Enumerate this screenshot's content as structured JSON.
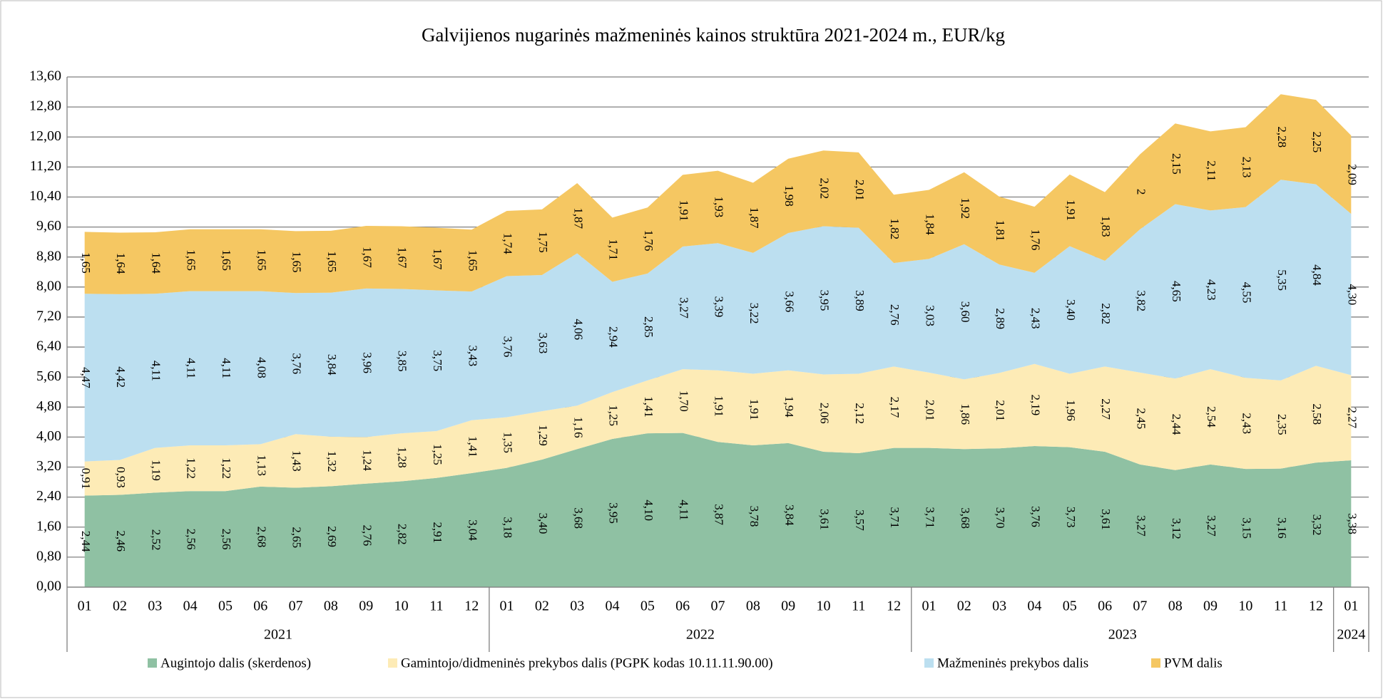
{
  "chart_data": {
    "type": "stacked-area",
    "title": "Galvijienos nugarinės mažmeninės kainos struktūra 2021-2024 m., EUR/kg",
    "categories": [
      "01",
      "02",
      "03",
      "04",
      "05",
      "06",
      "07",
      "08",
      "09",
      "10",
      "11",
      "12",
      "01",
      "02",
      "03",
      "04",
      "05",
      "06",
      "07",
      "08",
      "09",
      "10",
      "11",
      "12",
      "01",
      "02",
      "03",
      "04",
      "05",
      "06",
      "07",
      "08",
      "09",
      "10",
      "11",
      "12",
      "01"
    ],
    "years": [
      "2021",
      "2022",
      "2023",
      "2024"
    ],
    "ylim": [
      0,
      13.6
    ],
    "yticks": [
      {
        "value": 0,
        "label": "0,00"
      },
      {
        "value": 0.8,
        "label": "0,80"
      },
      {
        "value": 1.6,
        "label": "1,60"
      },
      {
        "value": 2.4,
        "label": "2,40"
      },
      {
        "value": 3.2,
        "label": "3,20"
      },
      {
        "value": 4,
        "label": "4,00"
      },
      {
        "value": 4.8,
        "label": "4,80"
      },
      {
        "value": 5.6,
        "label": "5,60"
      },
      {
        "value": 6.4,
        "label": "6,40"
      },
      {
        "value": 7.2,
        "label": "7,20"
      },
      {
        "value": 8,
        "label": "8,00"
      },
      {
        "value": 8.8,
        "label": "8,80"
      },
      {
        "value": 9.6,
        "label": "9,60"
      },
      {
        "value": 10.4,
        "label": "10,40"
      },
      {
        "value": 11.2,
        "label": "11,20"
      },
      {
        "value": 12,
        "label": "12,00"
      },
      {
        "value": 12.8,
        "label": "12,80"
      },
      {
        "value": 13.6,
        "label": "13,60"
      }
    ],
    "grid": true,
    "legend": "bottom",
    "series": [
      {
        "name": "Augintojo dalis (skerdenos)",
        "color": "#8fc1a3",
        "values": [
          2.44,
          2.46,
          2.52,
          2.56,
          2.56,
          2.68,
          2.65,
          2.69,
          2.76,
          2.82,
          2.91,
          3.04,
          3.18,
          3.4,
          3.68,
          3.95,
          4.1,
          4.11,
          3.87,
          3.78,
          3.84,
          3.61,
          3.57,
          3.71,
          3.71,
          3.68,
          3.7,
          3.76,
          3.73,
          3.61,
          3.27,
          3.12,
          3.27,
          3.15,
          3.16,
          3.32,
          3.38
        ],
        "value_labels": [
          "2,44",
          "2,46",
          "2,52",
          "2,56",
          "2,56",
          "2,68",
          "2,65",
          "2,69",
          "2,76",
          "2,82",
          "2,91",
          "3,04",
          "3,18",
          "3,40",
          "3,68",
          "3,95",
          "4,10",
          "4,11",
          "3,87",
          "3,78",
          "3,84",
          "3,61",
          "3,57",
          "3,71",
          "3,71",
          "3,68",
          "3,70",
          "3,76",
          "3,73",
          "3,61",
          "3,27",
          "3,12",
          "3,27",
          "3,15",
          "3,16",
          "3,32",
          "3,38"
        ]
      },
      {
        "name": "Gamintojo/didmeninės prekybos dalis (PGPK kodas 10.11.11.90.00)",
        "color": "#fdebb6",
        "values": [
          0.91,
          0.93,
          1.19,
          1.22,
          1.22,
          1.13,
          1.43,
          1.32,
          1.24,
          1.28,
          1.25,
          1.41,
          1.35,
          1.29,
          1.16,
          1.25,
          1.41,
          1.7,
          1.91,
          1.91,
          1.94,
          2.06,
          2.12,
          2.17,
          2.01,
          1.86,
          2.01,
          2.19,
          1.96,
          2.27,
          2.45,
          2.44,
          2.54,
          2.43,
          2.35,
          2.58,
          2.27
        ],
        "value_labels": [
          "0,91",
          "0,93",
          "1,19",
          "1,22",
          "1,22",
          "1,13",
          "1,43",
          "1,32",
          "1,24",
          "1,28",
          "1,25",
          "1,41",
          "1,35",
          "1,29",
          "1,16",
          "1,25",
          "1,41",
          "1,70",
          "1,91",
          "1,91",
          "1,94",
          "2,06",
          "2,12",
          "2,17",
          "2,01",
          "1,86",
          "2,01",
          "2,19",
          "1,96",
          "2,27",
          "2,45",
          "2,44",
          "2,54",
          "2,43",
          "2,35",
          "2,58",
          "2,27"
        ]
      },
      {
        "name": "Mažmeninės prekybos dalis",
        "color": "#bcdff0",
        "values": [
          4.47,
          4.42,
          4.11,
          4.11,
          4.11,
          4.08,
          3.76,
          3.84,
          3.96,
          3.85,
          3.75,
          3.43,
          3.76,
          3.63,
          4.06,
          2.94,
          2.85,
          3.27,
          3.39,
          3.22,
          3.66,
          3.95,
          3.89,
          2.76,
          3.03,
          3.6,
          2.89,
          2.43,
          3.4,
          2.82,
          3.82,
          4.65,
          4.23,
          4.55,
          5.35,
          4.84,
          4.3
        ],
        "value_labels": [
          "4,47",
          "4,42",
          "4,11",
          "4,11",
          "4,11",
          "4,08",
          "3,76",
          "3,84",
          "3,96",
          "3,85",
          "3,75",
          "3,43",
          "3,76",
          "3,63",
          "4,06",
          "2,94",
          "2,85",
          "3,27",
          "3,39",
          "3,22",
          "3,66",
          "3,95",
          "3,89",
          "2,76",
          "3,03",
          "3,60",
          "2,89",
          "2,43",
          "3,40",
          "2,82",
          "3,82",
          "4,65",
          "4,23",
          "4,55",
          "5,35",
          "4,84",
          "4,30"
        ]
      },
      {
        "name": "PVM dalis",
        "color": "#f5c762",
        "values": [
          1.65,
          1.64,
          1.64,
          1.65,
          1.65,
          1.65,
          1.65,
          1.65,
          1.67,
          1.67,
          1.67,
          1.65,
          1.74,
          1.75,
          1.87,
          1.71,
          1.76,
          1.91,
          1.93,
          1.87,
          1.98,
          2.02,
          2.01,
          1.82,
          1.84,
          1.92,
          1.81,
          1.76,
          1.91,
          1.83,
          2,
          2.15,
          2.11,
          2.13,
          2.28,
          2.25,
          2.09
        ],
        "value_labels": [
          "1,65",
          "1,64",
          "1,64",
          "1,65",
          "1,65",
          "1,65",
          "1,65",
          "1,65",
          "1,67",
          "1,67",
          "1,67",
          "1,65",
          "1,74",
          "1,75",
          "1,87",
          "1,71",
          "1,76",
          "1,91",
          "1,93",
          "1,87",
          "1,98",
          "2,02",
          "2,01",
          "1,82",
          "1,84",
          "1,92",
          "1,81",
          "1,76",
          "1,91",
          "1,83",
          "2",
          "2,15",
          "2,11",
          "2,13",
          "2,28",
          "2,25",
          "2,09"
        ]
      }
    ]
  }
}
